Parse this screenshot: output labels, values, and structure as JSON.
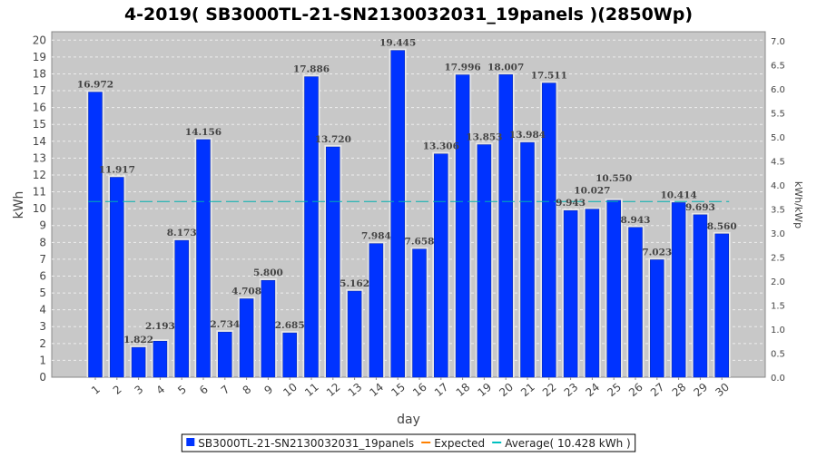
{
  "chart_data": {
    "type": "bar",
    "title": "4-2019( SB3000TL-21-SN2130032031_19panels )(2850Wp)",
    "xlabel": "day",
    "ylabel": "kWh",
    "ylabel_right": "kWh/kWp",
    "ylim": [
      0,
      20.5
    ],
    "ylim_right": [
      0,
      7.19
    ],
    "yticks": [
      0,
      1,
      2,
      3,
      4,
      5,
      6,
      7,
      8,
      9,
      10,
      11,
      12,
      13,
      14,
      15,
      16,
      17,
      18,
      19,
      20
    ],
    "yticks_right": [
      "0.0",
      "0.5",
      "1.0",
      "1.5",
      "2.0",
      "2.5",
      "3.0",
      "3.5",
      "4.0",
      "4.5",
      "5.0",
      "5.5",
      "6.0",
      "6.5",
      "7.0"
    ],
    "categories": [
      "1",
      "2",
      "3",
      "4",
      "5",
      "6",
      "7",
      "8",
      "9",
      "10",
      "11",
      "12",
      "13",
      "14",
      "15",
      "16",
      "17",
      "18",
      "19",
      "20",
      "21",
      "22",
      "23",
      "24",
      "25",
      "26",
      "27",
      "28",
      "29",
      "30"
    ],
    "values": [
      16.972,
      11.917,
      1.822,
      2.193,
      8.173,
      14.156,
      2.734,
      4.708,
      5.8,
      2.685,
      17.886,
      13.72,
      5.162,
      7.984,
      19.445,
      7.658,
      13.306,
      17.996,
      13.853,
      18.007,
      13.984,
      17.511,
      9.943,
      10.027,
      10.55,
      8.943,
      7.023,
      10.414,
      9.693,
      8.56
    ],
    "labels": [
      "16.972",
      "11.917",
      "1.822",
      "2.193",
      "8.173",
      "14.156",
      "2.734",
      "4.708",
      "5.800",
      "2.685",
      "17.886",
      "13.720",
      "5.162",
      "7.984",
      "19.445",
      "7.658",
      "13.306",
      "17.996",
      "13.853",
      "18.007",
      "13.984",
      "17.511",
      "9.943",
      "10.027",
      "10.550",
      "8.943",
      "7.023",
      "10.414",
      "9.693",
      "8.560"
    ],
    "average": 10.428,
    "grid": true,
    "legend_position": "bottom",
    "legend": [
      {
        "name": "SB3000TL-21-SN2130032031_19panels",
        "color": "#0033ff"
      },
      {
        "name": "Expected",
        "color": "#ff8000"
      },
      {
        "name": "Average( 10.428 kWh )",
        "color": "#00c0c0"
      }
    ]
  }
}
